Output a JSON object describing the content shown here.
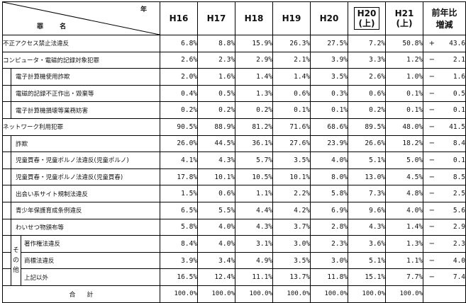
{
  "header": {
    "corner_year": "年",
    "corner_name": "罪 名",
    "years": [
      {
        "lines": [
          "H16"
        ]
      },
      {
        "lines": [
          "H17"
        ]
      },
      {
        "lines": [
          "H18"
        ]
      },
      {
        "lines": [
          "H19"
        ]
      },
      {
        "lines": [
          "H20"
        ]
      },
      {
        "lines": [
          "H20",
          "(上)"
        ],
        "framed": true
      },
      {
        "lines": [
          "H21",
          "(上)"
        ]
      }
    ],
    "change_lines": [
      "前年比",
      "増減"
    ]
  },
  "rows": [
    {
      "name": "不正アクセス禁止法違反",
      "level": 0,
      "values": [
        "6.8%",
        "8.8%",
        "15.9%",
        "26.3%",
        "27.5%",
        "7.2%",
        "50.8%"
      ],
      "sign": "+",
      "diff": "43.6"
    },
    {
      "name": "コンピュータ・電磁的記録対象犯罪",
      "level": 0,
      "values": [
        "2.6%",
        "2.3%",
        "2.9%",
        "2.1%",
        "3.9%",
        "3.3%",
        "1.2%"
      ],
      "sign": "−",
      "diff": "2.1"
    },
    {
      "name": "電子計算機使用詐欺",
      "level": 1,
      "values": [
        "2.0%",
        "1.6%",
        "1.4%",
        "1.4%",
        "3.5%",
        "2.6%",
        "1.0%"
      ],
      "sign": "−",
      "diff": "1.6"
    },
    {
      "name": "電磁的記録不正作出・毀棄等",
      "level": 1,
      "values": [
        "0.4%",
        "0.5%",
        "1.3%",
        "0.6%",
        "0.3%",
        "0.6%",
        "0.1%"
      ],
      "sign": "−",
      "diff": "0.5"
    },
    {
      "name": "電子計算機損壊等業務妨害",
      "level": 1,
      "values": [
        "0.2%",
        "0.2%",
        "0.2%",
        "0.1%",
        "0.1%",
        "0.2%",
        "0.1%"
      ],
      "sign": "−",
      "diff": "0.1"
    },
    {
      "name": "ネットワーク利用犯罪",
      "level": 0,
      "values": [
        "90.5%",
        "88.9%",
        "81.2%",
        "71.6%",
        "68.6%",
        "89.5%",
        "48.0%"
      ],
      "sign": "−",
      "diff": "41.5"
    },
    {
      "name": "詐欺",
      "level": 1,
      "values": [
        "26.0%",
        "44.5%",
        "36.1%",
        "27.6%",
        "23.9%",
        "26.6%",
        "18.2%"
      ],
      "sign": "−",
      "diff": "8.4"
    },
    {
      "name": "児童買春・児童ポルノ法違反(児童ポルノ)",
      "level": 1,
      "values": [
        "4.1%",
        "4.3%",
        "5.7%",
        "3.5%",
        "4.0%",
        "5.1%",
        "5.0%"
      ],
      "sign": "−",
      "diff": "0.1"
    },
    {
      "name": "児童買春・児童ポルノ法違反(児童買春)",
      "level": 1,
      "values": [
        "17.8%",
        "10.1%",
        "10.5%",
        "10.1%",
        "8.0%",
        "13.0%",
        "4.5%"
      ],
      "sign": "−",
      "diff": "8.5"
    },
    {
      "name": "出会い系サイト規制法違反",
      "level": 1,
      "values": [
        "1.5%",
        "0.6%",
        "1.1%",
        "2.2%",
        "5.8%",
        "7.3%",
        "4.8%"
      ],
      "sign": "−",
      "diff": "2.5"
    },
    {
      "name": "青少年保護育成条例違反",
      "level": 1,
      "values": [
        "6.5%",
        "5.5%",
        "4.4%",
        "4.2%",
        "6.9%",
        "9.6%",
        "4.0%"
      ],
      "sign": "−",
      "diff": "5.6"
    },
    {
      "name": "わいせつ物頒布等",
      "level": 1,
      "values": [
        "5.8%",
        "4.0%",
        "4.3%",
        "3.7%",
        "2.8%",
        "4.3%",
        "1.4%"
      ],
      "sign": "−",
      "diff": "2.9"
    },
    {
      "name": "著作権法違反",
      "level": 2,
      "values": [
        "8.4%",
        "4.0%",
        "3.1%",
        "3.0%",
        "2.3%",
        "3.6%",
        "1.3%"
      ],
      "sign": "−",
      "diff": "2.3"
    },
    {
      "name": "商標法違反",
      "level": 2,
      "values": [
        "3.9%",
        "3.4%",
        "4.9%",
        "3.5%",
        "3.0%",
        "5.1%",
        "1.1%"
      ],
      "sign": "−",
      "diff": "4.0"
    },
    {
      "name": "上記以外",
      "level": 2,
      "values": [
        "16.5%",
        "12.4%",
        "11.1%",
        "13.7%",
        "11.8%",
        "15.1%",
        "7.7%"
      ],
      "sign": "−",
      "diff": "7.4"
    }
  ],
  "other_label": "その他",
  "total": {
    "label": "合計",
    "values": [
      "100.0%",
      "100.0%",
      "100.0%",
      "100.0%",
      "100.0%",
      "100.0%",
      "100.0%"
    ]
  }
}
